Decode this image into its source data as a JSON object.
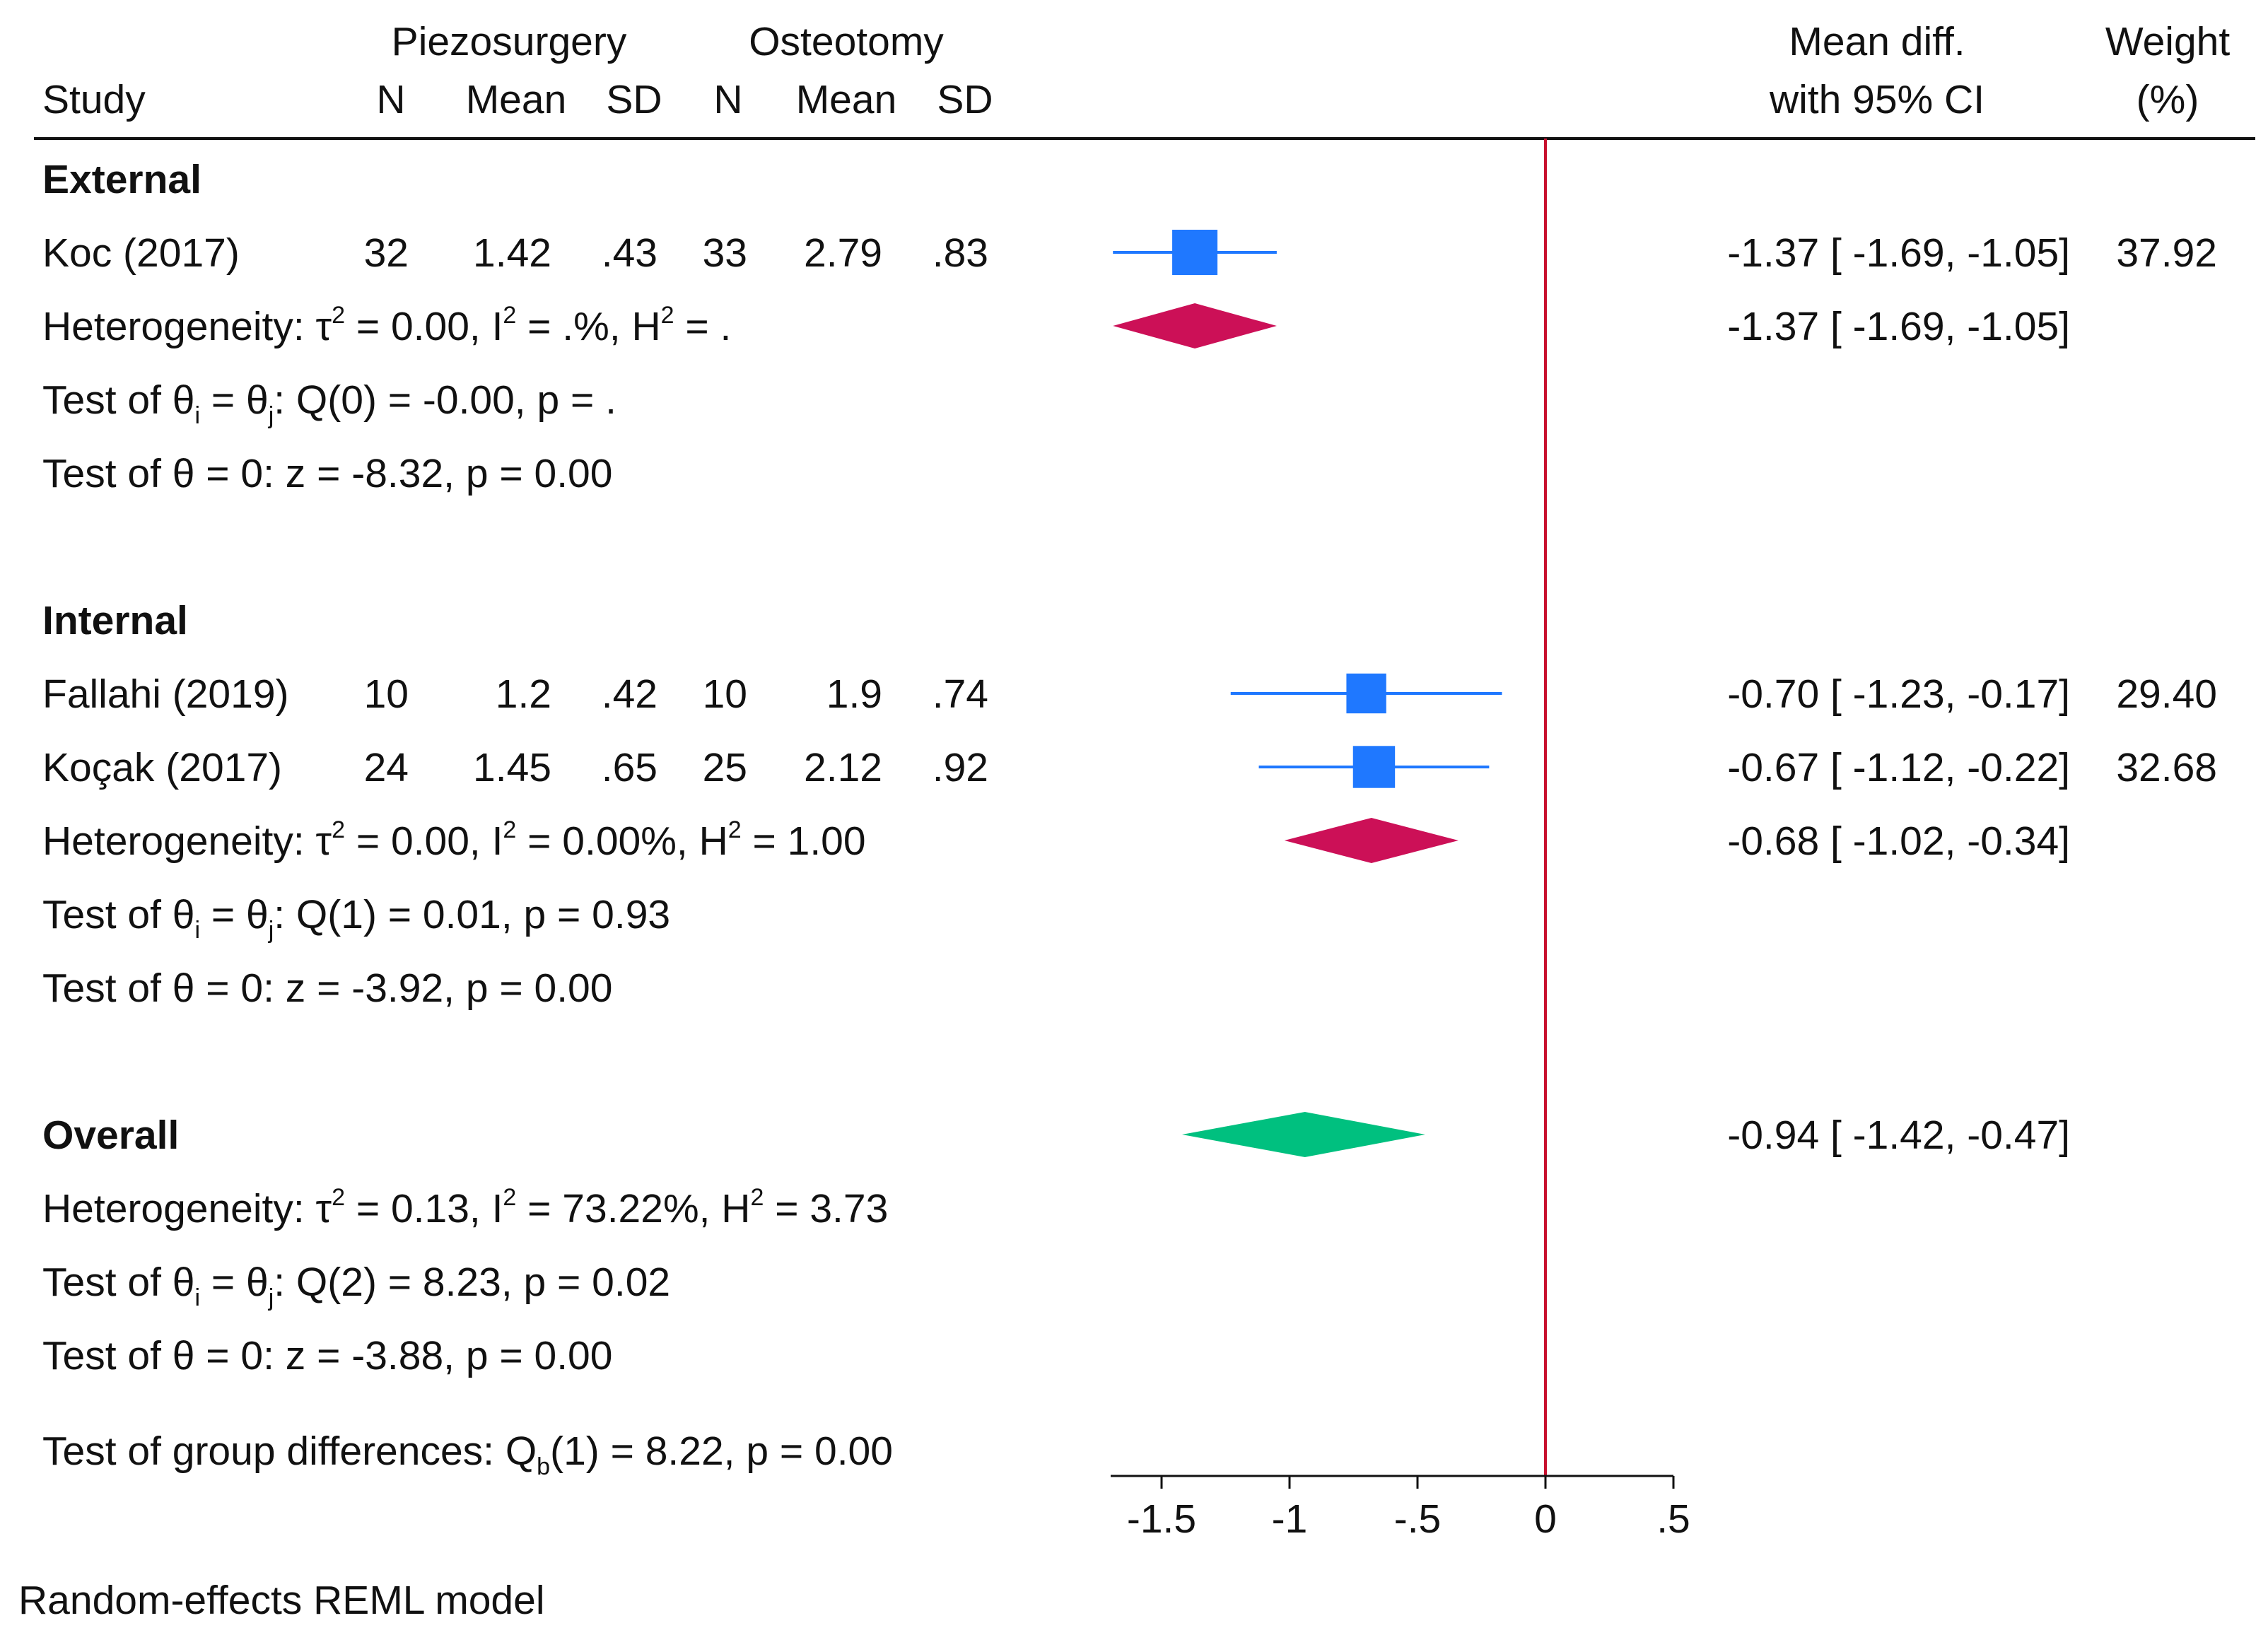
{
  "header": {
    "group1": "Piezosurgery",
    "group2": "Osteotomy",
    "study": "Study",
    "n": "N",
    "mean": "Mean",
    "sd": "SD",
    "effect_line1": "Mean diff.",
    "effect_line2": "with 95% CI",
    "weight_line1": "Weight",
    "weight_line2": "(%)"
  },
  "colors": {
    "study_marker": "#1f78ff",
    "subgroup_diamond": "#cc1057",
    "overall_diamond": "#00c07f",
    "null_line": "#c8102e"
  },
  "chart_data": {
    "type": "forest",
    "xaxis": {
      "ticks": [
        -1.5,
        -1,
        -0.5,
        0,
        0.5
      ],
      "tick_labels": [
        "-1.5",
        "-1",
        "-.5",
        "0",
        ".5"
      ],
      "null_value": 0
    },
    "subgroups": [
      {
        "name": "External",
        "studies": [
          {
            "study": "Koc (2017)",
            "n1": "32",
            "mean1": "1.42",
            "sd1": ".43",
            "n2": "33",
            "mean2": "2.79",
            "sd2": ".83",
            "md": -1.37,
            "lo": -1.69,
            "hi": -1.05,
            "ci_text": "-1.37 [ -1.69,  -1.05]",
            "weight": "37.92"
          }
        ],
        "pooled": {
          "md": -1.37,
          "lo": -1.69,
          "hi": -1.05,
          "ci_text": "-1.37 [ -1.69,  -1.05]"
        },
        "heterogeneity": {
          "tau2": "0.00",
          "i2": ".%",
          "h2": "."
        },
        "q_test": {
          "df": "0",
          "q": "-0.00",
          "p": "."
        },
        "z_test": {
          "z": "-8.32",
          "p": "0.00"
        }
      },
      {
        "name": "Internal",
        "studies": [
          {
            "study": "Fallahi (2019)",
            "n1": "10",
            "mean1": "1.2",
            "sd1": ".42",
            "n2": "10",
            "mean2": "1.9",
            "sd2": ".74",
            "md": -0.7,
            "lo": -1.23,
            "hi": -0.17,
            "ci_text": "-0.70 [ -1.23,  -0.17]",
            "weight": "29.40"
          },
          {
            "study": "Koçak (2017)",
            "n1": "24",
            "mean1": "1.45",
            "sd1": ".65",
            "n2": "25",
            "mean2": "2.12",
            "sd2": ".92",
            "md": -0.67,
            "lo": -1.12,
            "hi": -0.22,
            "ci_text": "-0.67 [ -1.12,  -0.22]",
            "weight": "32.68"
          }
        ],
        "pooled": {
          "md": -0.68,
          "lo": -1.02,
          "hi": -0.34,
          "ci_text": "-0.68 [ -1.02,  -0.34]"
        },
        "heterogeneity": {
          "tau2": "0.00",
          "i2": "0.00%",
          "h2": "1.00"
        },
        "q_test": {
          "df": "1",
          "q": "0.01",
          "p": "0.93"
        },
        "z_test": {
          "z": "-3.92",
          "p": "0.00"
        }
      }
    ],
    "overall": {
      "name": "Overall",
      "md": -0.94,
      "lo": -1.42,
      "hi": -0.47,
      "ci_text": "-0.94 [ -1.42,  -0.47]",
      "heterogeneity": {
        "tau2": "0.13",
        "i2": "73.22%",
        "h2": "3.73"
      },
      "q_test": {
        "df": "2",
        "q": "8.23",
        "p": "0.02"
      },
      "z_test": {
        "z": "-3.88",
        "p": "0.00"
      }
    },
    "group_test": {
      "df": "1",
      "qb": "8.22",
      "p": "0.00"
    },
    "model_note": "Random-effects REML model"
  }
}
